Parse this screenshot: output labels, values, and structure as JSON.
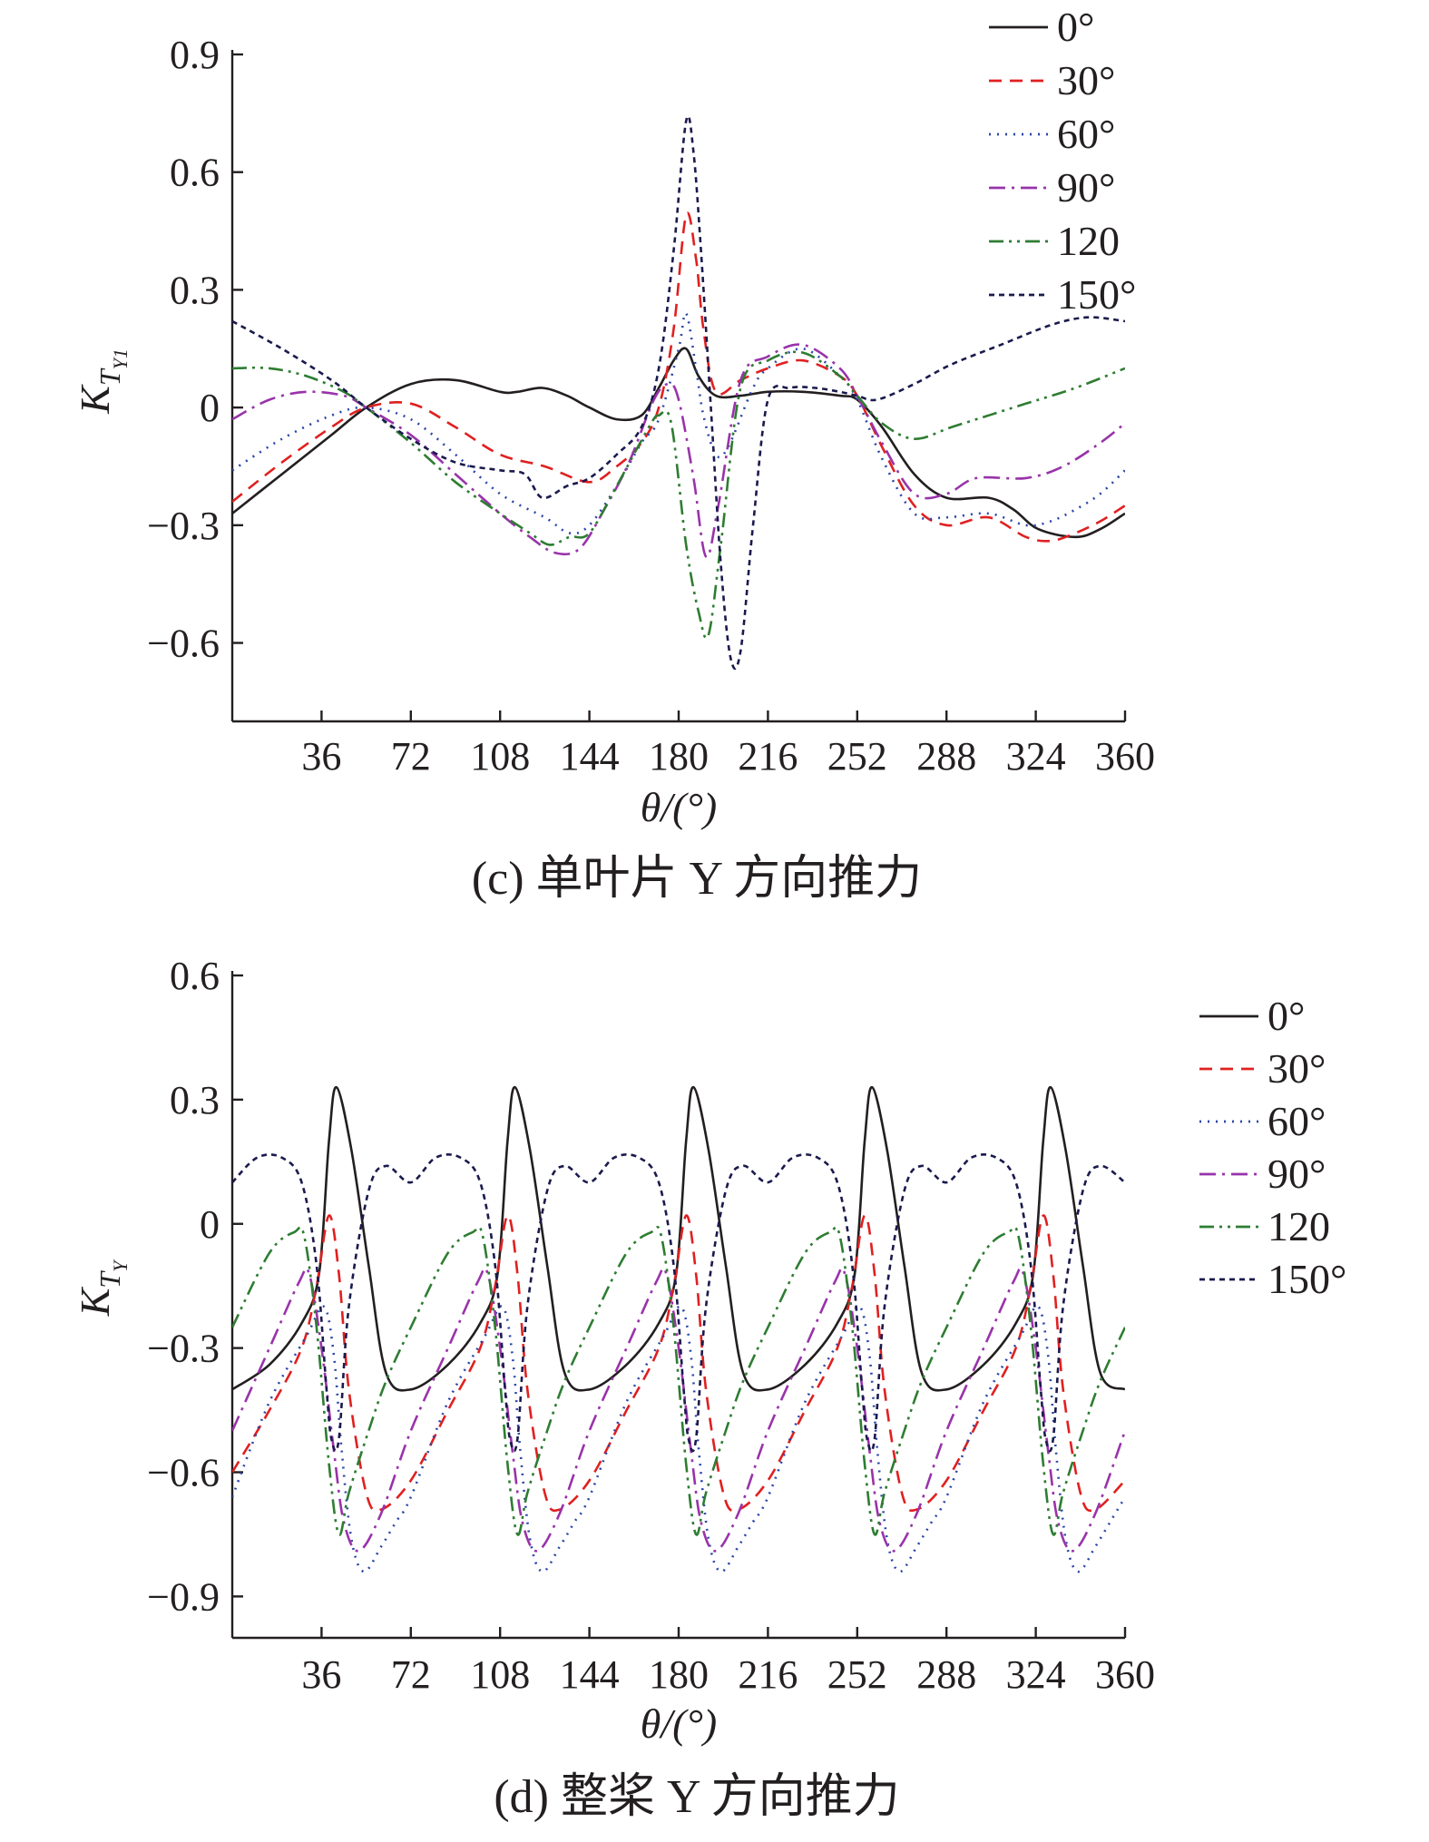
{
  "chart_data": [
    {
      "type": "line",
      "caption": "(c) 单叶片 Y 方向推力",
      "xlabel": "θ/(°)",
      "ylabel_main": "K",
      "ylabel_sub": "T",
      "ylabel_subsub": "Y1",
      "xlim": [
        0,
        360
      ],
      "ylim": [
        -0.8,
        0.9
      ],
      "xticks": [
        "36",
        "72",
        "108",
        "144",
        "180",
        "216",
        "252",
        "288",
        "324",
        "360"
      ],
      "yticks": [
        "0.9",
        "0.6",
        "0.3",
        "0",
        "−0.3",
        "−0.6"
      ],
      "ytick_values": [
        0.9,
        0.6,
        0.3,
        0,
        -0.3,
        -0.6
      ],
      "grid": false,
      "legend_position": "top-right",
      "series": [
        {
          "name": "0°",
          "color": "#231f20",
          "dash": "none",
          "x": [
            0,
            20,
            40,
            54,
            72,
            90,
            108,
            115,
            125,
            135,
            144,
            155,
            165,
            172,
            178,
            183,
            188,
            195,
            205,
            216,
            230,
            245,
            252,
            262,
            275,
            288,
            305,
            315,
            325,
            340,
            350,
            360
          ],
          "y": [
            -0.27,
            -0.17,
            -0.07,
            0.0,
            0.06,
            0.07,
            0.04,
            0.04,
            0.05,
            0.03,
            0.0,
            -0.03,
            -0.02,
            0.05,
            0.12,
            0.15,
            0.08,
            0.03,
            0.03,
            0.04,
            0.04,
            0.03,
            0.02,
            -0.05,
            -0.17,
            -0.23,
            -0.23,
            -0.26,
            -0.31,
            -0.33,
            -0.31,
            -0.27
          ]
        },
        {
          "name": "30°",
          "color": "#e02020",
          "dash": "14,9",
          "x": [
            0,
            20,
            40,
            54,
            72,
            90,
            108,
            126,
            144,
            155,
            165,
            172,
            178,
            183,
            187,
            190,
            195,
            205,
            216,
            230,
            245,
            252,
            262,
            275,
            288,
            305,
            320,
            330,
            340,
            350,
            360
          ],
          "y": [
            -0.24,
            -0.14,
            -0.05,
            0.0,
            0.01,
            -0.05,
            -0.12,
            -0.15,
            -0.19,
            -0.15,
            -0.09,
            0.0,
            0.2,
            0.49,
            0.38,
            0.2,
            0.04,
            0.07,
            0.1,
            0.12,
            0.08,
            0.03,
            -0.1,
            -0.25,
            -0.3,
            -0.28,
            -0.33,
            -0.34,
            -0.32,
            -0.29,
            -0.25
          ]
        },
        {
          "name": "60°",
          "color": "#2a45a8",
          "dash": "2,7",
          "x": [
            0,
            20,
            40,
            54,
            72,
            90,
            108,
            126,
            136,
            144,
            155,
            165,
            172,
            180,
            183,
            187,
            190,
            195,
            200,
            210,
            216,
            230,
            245,
            252,
            262,
            275,
            288,
            305,
            320,
            330,
            340,
            350,
            360
          ],
          "y": [
            -0.16,
            -0.08,
            -0.02,
            0.0,
            -0.03,
            -0.12,
            -0.22,
            -0.28,
            -0.32,
            -0.3,
            -0.2,
            -0.09,
            -0.03,
            0.15,
            0.24,
            0.1,
            -0.02,
            -0.12,
            -0.1,
            0.05,
            0.1,
            0.15,
            0.08,
            0.02,
            -0.13,
            -0.27,
            -0.28,
            -0.27,
            -0.3,
            -0.29,
            -0.26,
            -0.22,
            -0.16
          ]
        },
        {
          "name": "90°",
          "color": "#9933aa",
          "dash": "18,7,3,7",
          "x": [
            0,
            15,
            30,
            45,
            54,
            72,
            90,
            108,
            120,
            130,
            140,
            150,
            160,
            170,
            176,
            180,
            186,
            191,
            196,
            205,
            216,
            230,
            245,
            252,
            262,
            275,
            288,
            300,
            320,
            335,
            350,
            360
          ],
          "y": [
            -0.03,
            0.02,
            0.04,
            0.03,
            0.0,
            -0.07,
            -0.17,
            -0.27,
            -0.33,
            -0.37,
            -0.36,
            -0.26,
            -0.14,
            0.02,
            0.06,
            0.02,
            -0.18,
            -0.38,
            -0.25,
            0.07,
            0.13,
            0.16,
            0.1,
            0.03,
            -0.09,
            -0.22,
            -0.22,
            -0.18,
            -0.18,
            -0.15,
            -0.09,
            -0.04
          ]
        },
        {
          "name": "120",
          "color": "#2e7d32",
          "dash": "16,6,3,6,3,6",
          "x": [
            0,
            15,
            30,
            45,
            54,
            72,
            90,
            108,
            120,
            128,
            136,
            144,
            155,
            168,
            172,
            177,
            183,
            188,
            192,
            197,
            205,
            216,
            230,
            245,
            252,
            262,
            275,
            290,
            305,
            320,
            340,
            360
          ],
          "y": [
            0.1,
            0.1,
            0.08,
            0.04,
            0.0,
            -0.09,
            -0.19,
            -0.27,
            -0.32,
            -0.35,
            -0.33,
            -0.32,
            -0.2,
            -0.05,
            -0.02,
            -0.04,
            -0.35,
            -0.52,
            -0.58,
            -0.35,
            0.05,
            0.12,
            0.14,
            0.08,
            0.03,
            -0.04,
            -0.08,
            -0.05,
            -0.02,
            0.01,
            0.05,
            0.1
          ]
        },
        {
          "name": "150°",
          "color": "#1a1a4e",
          "dash": "6,5",
          "x": [
            0,
            20,
            40,
            54,
            72,
            90,
            108,
            118,
            125,
            135,
            144,
            155,
            165,
            172,
            178,
            183,
            186,
            189,
            193,
            197,
            201,
            205,
            210,
            216,
            225,
            235,
            245,
            252,
            260,
            275,
            290,
            310,
            330,
            345,
            360
          ],
          "y": [
            0.22,
            0.15,
            0.07,
            0.0,
            -0.08,
            -0.14,
            -0.16,
            -0.17,
            -0.23,
            -0.2,
            -0.18,
            -0.12,
            -0.05,
            0.1,
            0.4,
            0.73,
            0.65,
            0.4,
            0.0,
            -0.4,
            -0.64,
            -0.62,
            -0.3,
            0.02,
            0.05,
            0.05,
            0.04,
            0.03,
            0.02,
            0.06,
            0.11,
            0.16,
            0.21,
            0.23,
            0.22
          ]
        }
      ]
    },
    {
      "type": "line",
      "caption": "(d) 整桨 Y 方向推力",
      "xlabel": "θ/(°)",
      "ylabel_main": "K",
      "ylabel_sub": "T",
      "ylabel_subsub": "Y",
      "xlim": [
        0,
        360
      ],
      "ylim": [
        -1.0,
        0.6
      ],
      "xticks": [
        "36",
        "72",
        "108",
        "144",
        "180",
        "216",
        "252",
        "288",
        "324",
        "360"
      ],
      "yticks": [
        "0.6",
        "0.3",
        "0",
        "−0.3",
        "−0.6",
        "−0.9"
      ],
      "ytick_values": [
        0.6,
        0.3,
        0,
        -0.3,
        -0.6,
        -0.9
      ],
      "grid": false,
      "legend_position": "right",
      "period": 72,
      "series": [
        {
          "name": "0°",
          "color": "#231f20",
          "dash": "none",
          "base_x": [
            0,
            15,
            28,
            35,
            39,
            42,
            48,
            55,
            62,
            72
          ],
          "base_y": [
            -0.4,
            -0.34,
            -0.24,
            -0.12,
            0.2,
            0.33,
            0.18,
            -0.1,
            -0.36,
            -0.4
          ]
        },
        {
          "name": "30°",
          "color": "#e02020",
          "dash": "14,9",
          "base_x": [
            0,
            15,
            28,
            34,
            39,
            43,
            47,
            54,
            60,
            72
          ],
          "base_y": [
            -0.6,
            -0.45,
            -0.3,
            -0.15,
            0.02,
            -0.12,
            -0.4,
            -0.65,
            -0.69,
            -0.62
          ]
        },
        {
          "name": "60°",
          "color": "#2a45a8",
          "dash": "2,7",
          "base_x": [
            0,
            15,
            30,
            37,
            41,
            44,
            48,
            53,
            60,
            66,
            72
          ],
          "base_y": [
            -0.66,
            -0.43,
            -0.27,
            -0.2,
            -0.32,
            -0.54,
            -0.76,
            -0.84,
            -0.78,
            -0.72,
            -0.66
          ]
        },
        {
          "name": "90°",
          "color": "#9933aa",
          "dash": "18,7,3,7",
          "base_x": [
            0,
            15,
            27,
            31,
            36,
            41,
            45,
            51,
            60,
            72
          ],
          "base_y": [
            -0.5,
            -0.3,
            -0.14,
            -0.12,
            -0.3,
            -0.55,
            -0.72,
            -0.79,
            -0.7,
            -0.5
          ]
        },
        {
          "name": "120",
          "color": "#2e7d32",
          "dash": "16,6,3,6,3,6",
          "base_x": [
            0,
            15,
            25,
            29,
            34,
            39,
            43,
            47,
            55,
            62,
            72
          ],
          "base_y": [
            -0.25,
            -0.07,
            -0.02,
            -0.03,
            -0.25,
            -0.58,
            -0.75,
            -0.65,
            -0.5,
            -0.38,
            -0.25
          ]
        },
        {
          "name": "150°",
          "color": "#1a1a4e",
          "dash": "6,5",
          "base_x": [
            0,
            10,
            20,
            28,
            34,
            38,
            40,
            43,
            47,
            55,
            62,
            72
          ],
          "base_y": [
            0.1,
            0.16,
            0.16,
            0.1,
            -0.1,
            -0.4,
            -0.52,
            -0.52,
            -0.2,
            0.08,
            0.14,
            0.1
          ]
        }
      ]
    }
  ]
}
